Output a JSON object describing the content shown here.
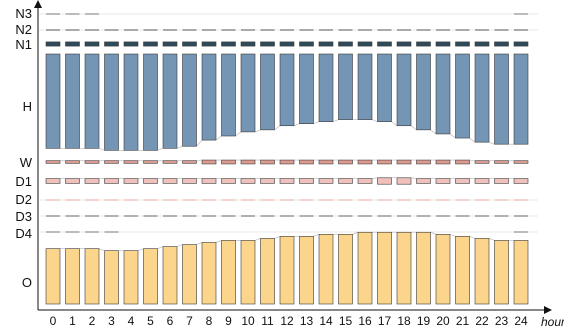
{
  "chart_data": {
    "type": "bar",
    "xlabel": "hour",
    "x": [
      0,
      1,
      2,
      3,
      4,
      5,
      6,
      7,
      8,
      9,
      10,
      11,
      12,
      13,
      14,
      15,
      16,
      17,
      18,
      19,
      20,
      21,
      22,
      23,
      24
    ],
    "tick_labels": [
      "0",
      "1",
      "2",
      "3",
      "4",
      "5",
      "6",
      "7",
      "8",
      "9",
      "10",
      "11",
      "12",
      "13",
      "14",
      "15",
      "16",
      "17",
      "18",
      "19",
      "20",
      "21",
      "22",
      "23",
      "24"
    ],
    "categories": [
      "N3",
      "N2",
      "N1",
      "H",
      "W",
      "D1",
      "D2",
      "D3",
      "D4",
      "O"
    ],
    "colors": {
      "N3": "#7a7a7a",
      "N2": "#555555",
      "N1": "#2f4a5a",
      "H": "#7595b5",
      "W": "#dd9a90",
      "D1": "#f0c0bc",
      "D2": "#e7a8a2",
      "D3": "#666666",
      "D4": "#777777",
      "O": "#fbd58c",
      "grid": "#e8e8e8",
      "bar_edge": "#3a3a3a"
    },
    "series": [
      {
        "name": "N3",
        "values": [
          1,
          1,
          1,
          0,
          0,
          0,
          0,
          0,
          0,
          0,
          0,
          0,
          0,
          0,
          0,
          0,
          0,
          0,
          0,
          0,
          0,
          0,
          0,
          0,
          1
        ]
      },
      {
        "name": "N2",
        "values": [
          1,
          1,
          1,
          1,
          1,
          1,
          1,
          1,
          1,
          1,
          1,
          1,
          1,
          1,
          1,
          1,
          1,
          1,
          1,
          1,
          1,
          1,
          1,
          1,
          1
        ]
      },
      {
        "name": "N1",
        "values": [
          3,
          3,
          3,
          3,
          3,
          3,
          3,
          3,
          3,
          3,
          3,
          3,
          3,
          3,
          3,
          3,
          3,
          3,
          3,
          3,
          3,
          3,
          3,
          3,
          3
        ]
      },
      {
        "name": "H",
        "values": [
          46,
          46,
          46,
          47,
          47,
          47,
          46,
          45,
          42,
          40,
          38,
          37,
          35,
          34,
          33,
          32,
          32,
          33,
          35,
          37,
          39,
          41,
          43,
          44,
          44
        ]
      },
      {
        "name": "W",
        "values": [
          2,
          2,
          2,
          2,
          2,
          2,
          2,
          2,
          3,
          3,
          3,
          3,
          3,
          3,
          3,
          3,
          3,
          3,
          3,
          3,
          3,
          3,
          2,
          2,
          2
        ]
      },
      {
        "name": "D1",
        "values": [
          3,
          3,
          3,
          3,
          3,
          3,
          3,
          3,
          3,
          3,
          3,
          3,
          3,
          3,
          3,
          3,
          3,
          4,
          4,
          3,
          3,
          3,
          3,
          3,
          3
        ]
      },
      {
        "name": "D2",
        "values": [
          1,
          1,
          1,
          1,
          1,
          1,
          1,
          1,
          1,
          1,
          1,
          1,
          1,
          1,
          1,
          1,
          1,
          1,
          1,
          1,
          1,
          1,
          1,
          1,
          1
        ]
      },
      {
        "name": "D3",
        "values": [
          1,
          1,
          1,
          1,
          1,
          1,
          1,
          1,
          1,
          1,
          1,
          1,
          1,
          1,
          1,
          1,
          1,
          1,
          1,
          1,
          1,
          1,
          1,
          1,
          1
        ]
      },
      {
        "name": "D4",
        "values": [
          1,
          1,
          1,
          1,
          0,
          0,
          0,
          0,
          0,
          0,
          0,
          0,
          0,
          0,
          0,
          0,
          0,
          0,
          0,
          0,
          0,
          0,
          0,
          0,
          1
        ]
      },
      {
        "name": "O",
        "values": [
          27,
          27,
          27,
          26,
          26,
          27,
          28,
          29,
          30,
          31,
          31,
          32,
          33,
          33,
          34,
          34,
          35,
          35,
          35,
          35,
          34,
          33,
          32,
          31,
          31
        ]
      }
    ]
  }
}
